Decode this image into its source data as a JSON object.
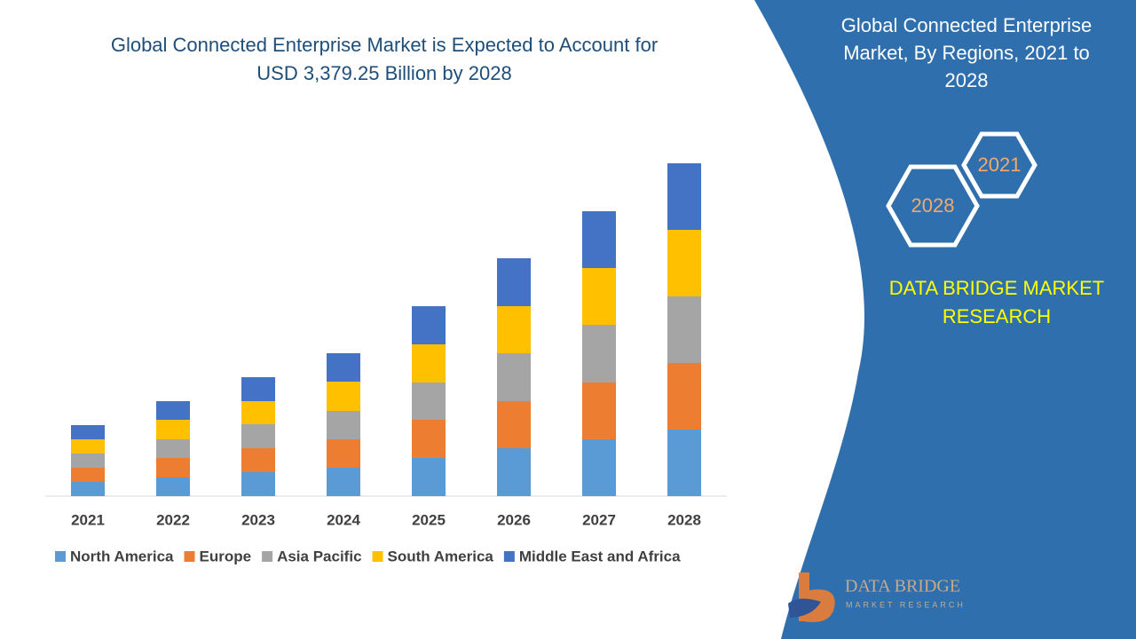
{
  "chart_data": {
    "type": "stacked-bar",
    "title": "Global Connected Enterprise Market is Expected to Account for USD 3,379.25 Billion by 2028",
    "categories": [
      "2021",
      "2022",
      "2023",
      "2024",
      "2025",
      "2026",
      "2027",
      "2028"
    ],
    "series": [
      {
        "name": "North America",
        "color": "#5b9bd5",
        "values": [
          16,
          21,
          27,
          32,
          43,
          54,
          64,
          75
        ]
      },
      {
        "name": "Europe",
        "color": "#ed7d31",
        "values": [
          16,
          22,
          27,
          32,
          43,
          53,
          64,
          75
        ]
      },
      {
        "name": "Asia Pacific",
        "color": "#a5a5a5",
        "values": [
          16,
          21,
          27,
          32,
          42,
          54,
          65,
          75
        ]
      },
      {
        "name": "South America",
        "color": "#ffc000",
        "values": [
          16,
          22,
          26,
          33,
          43,
          53,
          64,
          75
        ]
      },
      {
        "name": "Middle East and Africa",
        "color": "#4472c4",
        "values": [
          16,
          21,
          27,
          32,
          43,
          54,
          64,
          75
        ]
      }
    ],
    "ylim": [
      0,
      400
    ],
    "legend": "bottom"
  },
  "side_panel": {
    "title": "Global Connected Enterprise Market, By Regions, 2021 to 2028",
    "hexagons": [
      "2021",
      "2028"
    ],
    "brand": "DATA BRIDGE MARKET RESEARCH",
    "logo": {
      "name": "DATA BRIDGE",
      "tagline": "MARKET RESEARCH"
    }
  }
}
